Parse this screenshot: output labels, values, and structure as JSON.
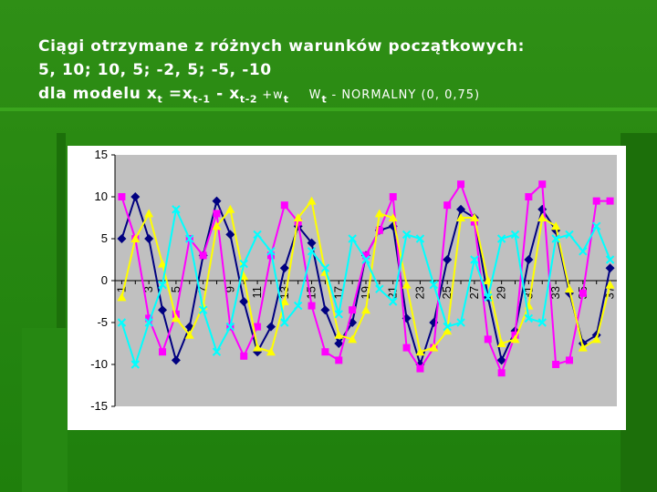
{
  "slide": {
    "title_line1": "Ciągi otrzymane z różnych warunków początkowych:",
    "title_line2": "5, 10;  10, 5;  -2, 5;   -5, -10",
    "title_line3_prefix": "dla modelu x",
    "title_sub_t": "t",
    "title_eq": " =x",
    "title_sub_t1": "t-1",
    "title_minus": " - x",
    "title_sub_t2": "t-2",
    "title_plus": "  +w",
    "title_sub_w": "t",
    "noise_prefix": "W",
    "noise_sub": "t",
    "noise_rest": " - NORMALNY (0, 0,75)"
  },
  "colors": {
    "plot_background": "#c0c0c0",
    "series_navy": "#000080",
    "series_magenta": "#ff00ff",
    "series_yellow": "#ffff00",
    "series_cyan": "#00ffff"
  },
  "chart_data": {
    "type": "line",
    "x": [
      1,
      2,
      3,
      4,
      5,
      6,
      7,
      8,
      9,
      10,
      11,
      12,
      13,
      14,
      15,
      16,
      17,
      18,
      19,
      20,
      21,
      22,
      23,
      24,
      25,
      26,
      27,
      28,
      29,
      30,
      31,
      32,
      33,
      34,
      35,
      36,
      37
    ],
    "x_tick_labels": [
      "1",
      "3",
      "5",
      "7",
      "9",
      "11",
      "13",
      "15",
      "17",
      "19",
      "21",
      "23",
      "25",
      "27",
      "29",
      "31",
      "33",
      "35",
      "37"
    ],
    "y_ticks": [
      15,
      10,
      5,
      0,
      -5,
      -10,
      -15
    ],
    "ylim": [
      -15,
      15
    ],
    "grid": false,
    "legend": "none",
    "series": [
      {
        "marker": "diamond",
        "color": "#000080",
        "values": [
          5,
          10,
          5,
          -3.5,
          -9.5,
          -5.5,
          3,
          9.5,
          5.5,
          -2.5,
          -8.5,
          -5.5,
          1.5,
          6.5,
          4.5,
          -3.5,
          -7.5,
          -5,
          3,
          6,
          6.5,
          -4.5,
          -10,
          -5,
          2.5,
          8.5,
          7.5,
          -2,
          -9.5,
          -6,
          2.5,
          8.5,
          6,
          -1.5,
          -7.5,
          -6.5,
          1.5
        ]
      },
      {
        "marker": "square",
        "color": "#ff00ff",
        "values": [
          10,
          5,
          -4.5,
          -8.5,
          -4,
          5,
          3,
          8,
          -5.5,
          -9,
          -5.5,
          3,
          9,
          7,
          -3,
          -8.5,
          -9.5,
          -3.5,
          3,
          6,
          10,
          -8,
          -10.5,
          -8,
          9,
          11.5,
          7,
          -7,
          -11,
          -6.5,
          10,
          11.5,
          -10,
          -9.5,
          -1.5,
          9.5,
          9.5
        ]
      },
      {
        "marker": "triangle",
        "color": "#ffff00",
        "values": [
          -2,
          5,
          8,
          2,
          -4.5,
          -6.5,
          -3,
          6.5,
          8.5,
          0.5,
          -8,
          -8.5,
          -2.5,
          7.5,
          9.5,
          1,
          -6.5,
          -7,
          -3.5,
          8,
          7.5,
          -0.5,
          -8.5,
          -8,
          -6,
          7.5,
          7.5,
          0,
          -7.5,
          -7,
          -3,
          7.5,
          6.5,
          -1,
          -8,
          -7,
          -0.5
        ]
      },
      {
        "marker": "x",
        "color": "#00ffff",
        "values": [
          -5,
          -10,
          -5,
          -0.5,
          8.5,
          5,
          -3.5,
          -8.5,
          -5.5,
          2,
          5.5,
          3.5,
          -5,
          -3,
          3.5,
          1.5,
          -4,
          5,
          2.5,
          -1,
          -2.5,
          5.5,
          5,
          -0.5,
          -5.5,
          -5,
          2.5,
          -2,
          5,
          5.5,
          -4.5,
          -5,
          5,
          5.5,
          3.5,
          6.5,
          2.5
        ]
      }
    ]
  }
}
